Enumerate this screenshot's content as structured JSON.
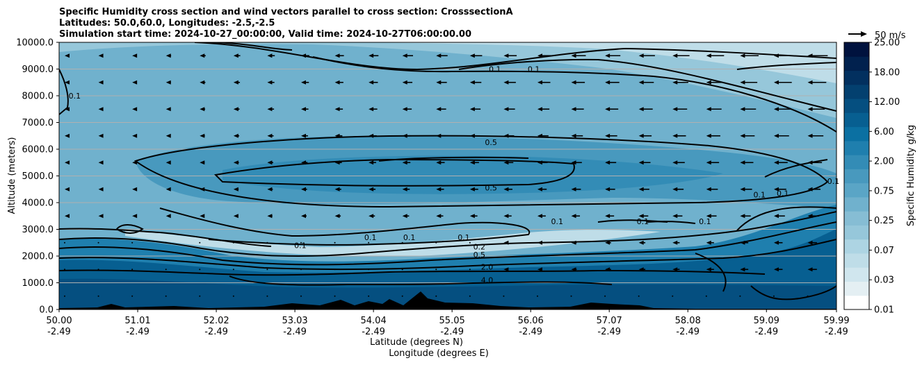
{
  "chart_data": {
    "type": "contourf",
    "title_lines": [
      "Specific Humidity cross section and wind vectors parallel to cross section: CrosssectionA",
      "Latitudes: 50.0,60.0, Longitudes: -2.5,-2.5",
      "Simulation start time: 2024-10-27_00:00:00, Valid time: 2024-10-27T06:00:00.00"
    ],
    "ylabel": "Altitude (meters)",
    "xlabel_lat": "Latitude (degrees N)",
    "xlabel_lon": "Longitude (degrees E)",
    "ylim": [
      0,
      10000
    ],
    "yticks": [
      "0.0",
      "1000.0",
      "2000.0",
      "3000.0",
      "4000.0",
      "5000.0",
      "6000.0",
      "7000.0",
      "8000.0",
      "9000.0",
      "10000.0"
    ],
    "xticks_lat": [
      "50.00",
      "51.01",
      "52.02",
      "53.03",
      "54.04",
      "55.05",
      "56.06",
      "57.07",
      "58.08",
      "59.09",
      "59.99"
    ],
    "xticks_lon": [
      "-2.49",
      "-2.49",
      "-2.49",
      "-2.49",
      "-2.49",
      "-2.49",
      "-2.49",
      "-2.49",
      "-2.49",
      "-2.49",
      "-2.49"
    ],
    "colorbar": {
      "label": "Specific Humidity g/kg",
      "tick_labels": [
        "0.01",
        "0.03",
        "0.07",
        "0.25",
        "0.75",
        "2.00",
        "6.00",
        "12.00",
        "18.00",
        "25.00"
      ],
      "colors": [
        "#ffffff",
        "#e4eff3",
        "#d0e6ee",
        "#bfdde8",
        "#add4e3",
        "#96c7da",
        "#86bdd4",
        "#70b1cd",
        "#5aa5c6",
        "#4899be",
        "#338cb6",
        "#1f7fae",
        "#0b70a2",
        "#075f91",
        "#054f80",
        "#03406f",
        "#02305f",
        "#01214e",
        "#00123e"
      ]
    },
    "quiver_key": "50 m/s",
    "contour_labels": [
      {
        "text": "0.1",
        "lat": 55.6,
        "alt": 8900
      },
      {
        "text": "0.1",
        "lat": 56.1,
        "alt": 8900
      },
      {
        "text": "0.1",
        "lat": 50.2,
        "alt": 7900
      },
      {
        "text": "0.5",
        "lat": 55.55,
        "alt": 6150
      },
      {
        "text": "0.5",
        "lat": 55.55,
        "alt": 4450
      },
      {
        "text": "0.1",
        "lat": 56.4,
        "alt": 3200
      },
      {
        "text": "0.1",
        "lat": 57.5,
        "alt": 3200
      },
      {
        "text": "0.1",
        "lat": 58.3,
        "alt": 3200
      },
      {
        "text": "0.1",
        "lat": 59.0,
        "alt": 4200
      },
      {
        "text": "0.1",
        "lat": 59.3,
        "alt": 4250
      },
      {
        "text": "0.1",
        "lat": 59.95,
        "alt": 4700
      },
      {
        "text": "0.1",
        "lat": 53.1,
        "alt": 2300
      },
      {
        "text": "0.1",
        "lat": 54.0,
        "alt": 2600
      },
      {
        "text": "0.1",
        "lat": 54.5,
        "alt": 2600
      },
      {
        "text": "0.1",
        "lat": 55.2,
        "alt": 2600
      },
      {
        "text": "0.2",
        "lat": 55.4,
        "alt": 2250
      },
      {
        "text": "0.5",
        "lat": 55.4,
        "alt": 1950
      },
      {
        "text": "2.0",
        "lat": 55.5,
        "alt": 1500
      },
      {
        "text": "4.0",
        "lat": 55.5,
        "alt": 1000
      }
    ]
  }
}
